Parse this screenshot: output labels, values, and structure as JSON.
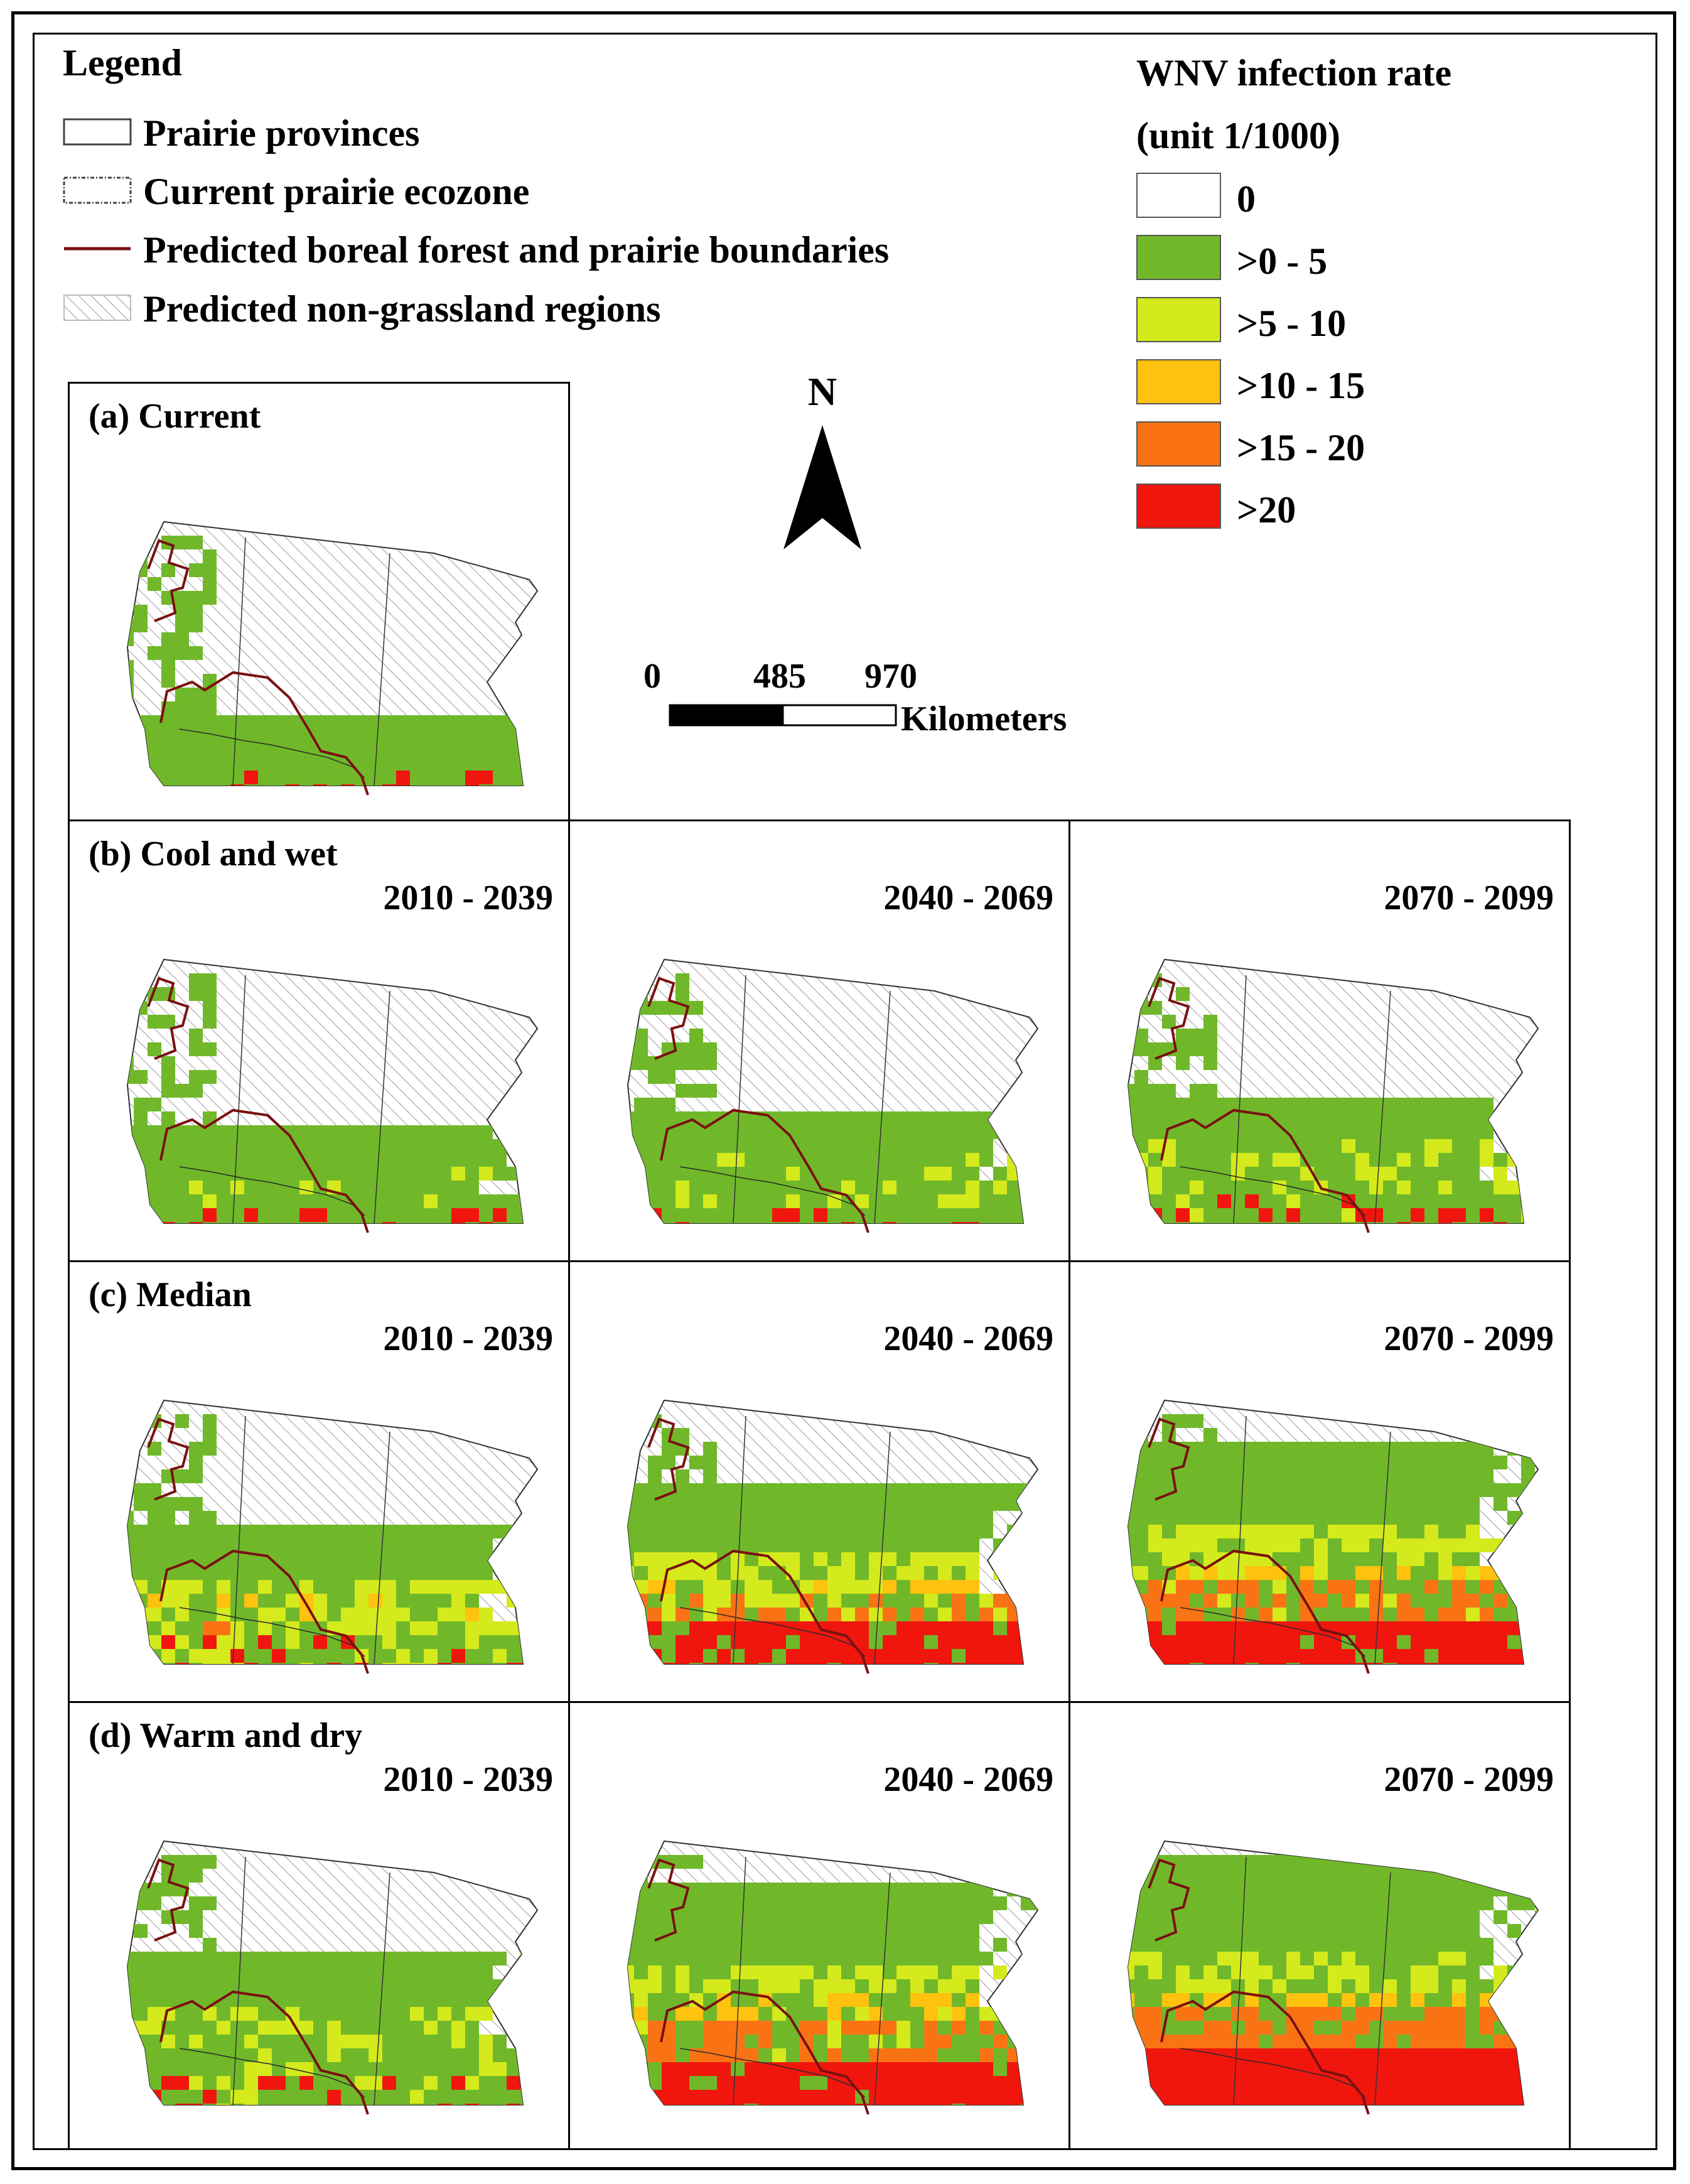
{
  "legend": {
    "title": "Legend",
    "items": [
      {
        "label": "Prairie provinces",
        "symbol": "prairie-provinces-box"
      },
      {
        "label": "Current prairie ecozone",
        "symbol": "current-ecozone-box"
      },
      {
        "label": "Predicted boreal forest and prairie boundaries",
        "symbol": "boundary-line"
      },
      {
        "label": "Predicted non-grassland regions",
        "symbol": "hatched-box"
      }
    ]
  },
  "rate_legend": {
    "title_line1": "WNV infection rate",
    "title_line2": "(unit 1/1000)",
    "classes": [
      {
        "label": "0",
        "color": "#ffffff"
      },
      {
        "label": ">0 - 5",
        "color": "#70b82a"
      },
      {
        "label": ">5 - 10",
        "color": "#d4ea1c"
      },
      {
        "label": ">10 - 15",
        "color": "#ffc20e"
      },
      {
        "label": ">15 - 20",
        "color": "#f97315"
      },
      {
        "label": ">20",
        "color": "#f0160e"
      }
    ]
  },
  "north_arrow": {
    "label": "N"
  },
  "scale_bar": {
    "ticks": [
      "0",
      "485",
      "970"
    ],
    "unit": "Kilometers"
  },
  "colors": {
    "boundary": "#7a1010",
    "river": "#2a2a2a",
    "hatch": "#9a9a9a",
    "outline": "#333333"
  },
  "panels": {
    "a": {
      "title": "(a) Current"
    },
    "b": {
      "title": "(b) Cool and wet",
      "periods": [
        "2010 - 2039",
        "2040 - 2069",
        "2070 - 2099"
      ]
    },
    "c": {
      "title": "(c) Median",
      "periods": [
        "2010 - 2039",
        "2040 - 2069",
        "2070 - 2099"
      ]
    },
    "d": {
      "title": "(d) Warm and dry",
      "periods": [
        "2010 - 2039",
        "2040 - 2069",
        "2070 - 2099"
      ]
    }
  }
}
